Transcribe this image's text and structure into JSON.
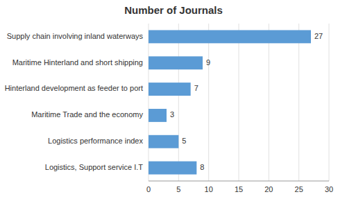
{
  "chart_data": {
    "type": "bar",
    "orientation": "horizontal",
    "title": "Number of Journals",
    "categories": [
      "Logistics, Support service I.T",
      "Logistics performance index",
      "Maritime Trade and the economy",
      "Hinterland development as feeder to port",
      "Maritime Hinterland and short shipping",
      "Supply chain involving inland waterways"
    ],
    "values": [
      8,
      5,
      3,
      7,
      9,
      27
    ],
    "color": "#5b9bd5",
    "xlim": [
      0,
      30
    ],
    "xticks": [
      0,
      5,
      10,
      15,
      20,
      25,
      30
    ],
    "grid": true,
    "data_labels": true
  }
}
